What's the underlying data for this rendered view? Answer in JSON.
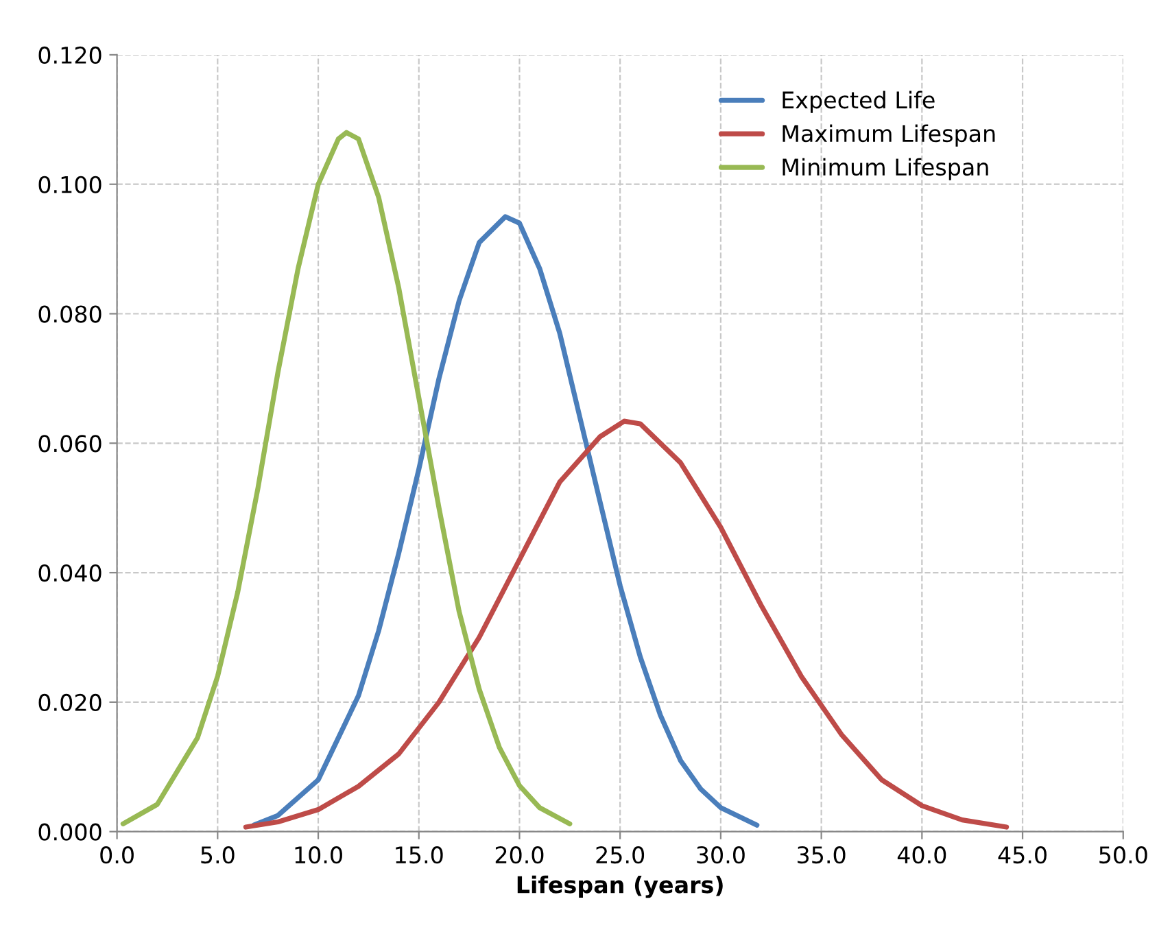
{
  "chart_data": {
    "type": "line",
    "xlabel": "Lifespan (years)",
    "xlim": [
      0,
      50
    ],
    "ylim": [
      0,
      0.12
    ],
    "xticks": [
      {
        "value": 0,
        "label": "0.0"
      },
      {
        "value": 5,
        "label": "5.0"
      },
      {
        "value": 10,
        "label": "10.0"
      },
      {
        "value": 15,
        "label": "15.0"
      },
      {
        "value": 20,
        "label": "20.0"
      },
      {
        "value": 25,
        "label": "25.0"
      },
      {
        "value": 30,
        "label": "30.0"
      },
      {
        "value": 35,
        "label": "35.0"
      },
      {
        "value": 40,
        "label": "40.0"
      },
      {
        "value": 45,
        "label": "45.0"
      },
      {
        "value": 50,
        "label": "50.0"
      }
    ],
    "yticks": [
      {
        "value": 0,
        "label": "0.000"
      },
      {
        "value": 0.02,
        "label": "0.020"
      },
      {
        "value": 0.04,
        "label": "0.040"
      },
      {
        "value": 0.06,
        "label": "0.060"
      },
      {
        "value": 0.08,
        "label": "0.080"
      },
      {
        "value": 0.1,
        "label": "0.100"
      },
      {
        "value": 0.12,
        "label": "0.120"
      }
    ],
    "grid": true,
    "legend": "top right",
    "marker": "none",
    "line_style": "solid",
    "series": [
      {
        "name": "Expected Life",
        "color": "#4a7ebb",
        "x": [
          6.8,
          8,
          10,
          12,
          13,
          14,
          15,
          16,
          17,
          18,
          19.3,
          20,
          21,
          22,
          23,
          24,
          25,
          26,
          27,
          28,
          29,
          30,
          31.8
        ],
        "values": [
          0.001,
          0.0025,
          0.008,
          0.021,
          0.031,
          0.043,
          0.056,
          0.07,
          0.082,
          0.091,
          0.095,
          0.094,
          0.087,
          0.077,
          0.064,
          0.051,
          0.038,
          0.027,
          0.018,
          0.011,
          0.0066,
          0.0037,
          0.001
        ]
      },
      {
        "name": "Maximum Lifespan",
        "color": "#be4b48",
        "x": [
          6.4,
          8,
          10,
          12,
          14,
          16,
          18,
          20,
          22,
          24,
          25.2,
          26,
          28,
          30,
          32,
          34,
          36,
          38,
          40,
          42,
          44.2
        ],
        "values": [
          0.0007,
          0.0015,
          0.0034,
          0.007,
          0.012,
          0.02,
          0.03,
          0.042,
          0.054,
          0.061,
          0.0634,
          0.063,
          0.057,
          0.047,
          0.035,
          0.024,
          0.015,
          0.008,
          0.004,
          0.0018,
          0.0007
        ]
      },
      {
        "name": "Minimum Lifespan",
        "color": "#98b954",
        "x": [
          0.3,
          2,
          4,
          5,
          6,
          7,
          8,
          9,
          10,
          11,
          11.4,
          12,
          13,
          14,
          15,
          16,
          17,
          18,
          19,
          20,
          21,
          22.5
        ],
        "values": [
          0.0012,
          0.0042,
          0.0145,
          0.024,
          0.037,
          0.053,
          0.071,
          0.087,
          0.1,
          0.107,
          0.108,
          0.107,
          0.098,
          0.084,
          0.067,
          0.05,
          0.034,
          0.022,
          0.013,
          0.0071,
          0.0037,
          0.0012
        ]
      }
    ]
  }
}
